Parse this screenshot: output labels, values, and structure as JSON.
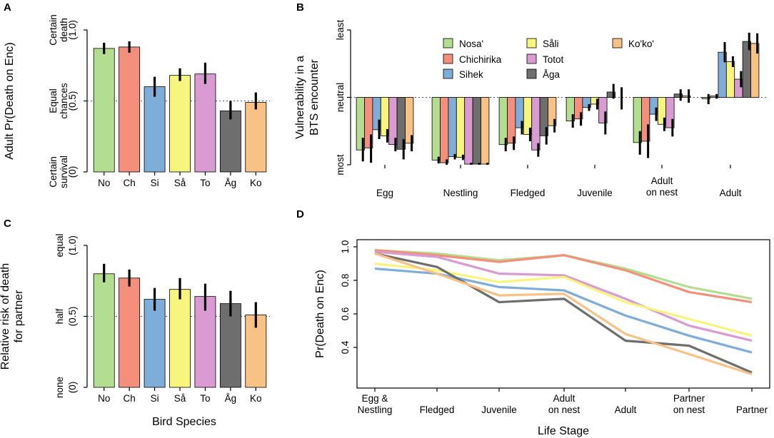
{
  "colors": {
    "Nosa'": "#b3de8f",
    "Chichirika": "#f48f7b",
    "Sihek": "#7fadd9",
    "Sali": "#f7f57e",
    "Totot": "#d99bd1",
    "Aga": "#6e6e6e",
    "Kokoo": "#f8c185"
  },
  "species_abbrev": [
    "No",
    "Ch",
    "Si",
    "Så",
    "To",
    "Åg",
    "Ko"
  ],
  "chart_data": [
    {
      "panel": "A",
      "type": "bar",
      "title": "",
      "xlabel": "",
      "ylabel": "Adult Pr(Death on Enc)",
      "ylim": [
        0,
        1
      ],
      "categories": [
        "No",
        "Ch",
        "Si",
        "Så",
        "To",
        "Åg",
        "Ko"
      ],
      "values": [
        0.87,
        0.88,
        0.6,
        0.68,
        0.69,
        0.43,
        0.49
      ],
      "err_low": [
        0.83,
        0.84,
        0.53,
        0.64,
        0.62,
        0.37,
        0.44
      ],
      "err_high": [
        0.91,
        0.92,
        0.67,
        0.73,
        0.77,
        0.5,
        0.56
      ],
      "reference_line": 0.5,
      "ytick_labels": [
        {
          "value": 1.0,
          "label": "Certain death",
          "num": "(1.0)"
        },
        {
          "value": 0.5,
          "label": "Equal chances",
          "num": "(0.5)"
        },
        {
          "value": 0.0,
          "label": "Certain survival",
          "num": "(0)"
        }
      ]
    },
    {
      "panel": "B",
      "type": "bar",
      "xlabel": "",
      "ylabel": "Vulnerability in a BTS encounter",
      "ylim": [
        -1,
        1
      ],
      "ytick_labels": [
        {
          "value": 1,
          "label": "least"
        },
        {
          "value": 0,
          "label": "neutral"
        },
        {
          "value": -1,
          "label": "most"
        }
      ],
      "categories": [
        "Egg",
        "Nestling",
        "Fledged",
        "Juvenile",
        "Adult on nest",
        "Adult"
      ],
      "legend": [
        "Nosa'",
        "Chichirika",
        "Sihek",
        "Sali",
        "Totot",
        "Aga",
        "Kokoo"
      ],
      "legend_labels": [
        "Nosa'",
        "Chichirika",
        "Sihek",
        "Såli",
        "Totot",
        "Åga",
        "Ko'ko'"
      ],
      "reference_line": 0,
      "series": [
        {
          "name": "Nosa'",
          "values": [
            -0.78,
            -0.93,
            -0.7,
            -0.35,
            -0.67,
            -0.02
          ],
          "err_low": [
            -0.95,
            -0.98,
            -0.8,
            -0.45,
            -0.85,
            -0.1
          ],
          "err_high": [
            -0.6,
            -0.88,
            -0.6,
            -0.25,
            -0.5,
            0.05
          ]
        },
        {
          "name": "Chichirika",
          "values": [
            -0.75,
            -0.97,
            -0.68,
            -0.32,
            -0.65,
            0.02
          ],
          "err_low": [
            -0.97,
            -1.0,
            -0.78,
            -0.42,
            -0.9,
            -0.02
          ],
          "err_high": [
            -0.55,
            -0.92,
            -0.58,
            -0.22,
            -0.4,
            0.05
          ]
        },
        {
          "name": "Sihek",
          "values": [
            -0.48,
            -0.88,
            -0.45,
            -0.15,
            -0.25,
            0.67
          ],
          "err_low": [
            -0.62,
            -0.92,
            -0.55,
            -0.2,
            -0.35,
            0.52
          ],
          "err_high": [
            -0.33,
            -0.84,
            -0.35,
            -0.1,
            -0.15,
            0.82
          ]
        },
        {
          "name": "Sali",
          "values": [
            -0.57,
            -0.89,
            -0.55,
            -0.1,
            -0.4,
            0.53
          ],
          "err_low": [
            -0.67,
            -0.93,
            -0.65,
            -0.18,
            -0.5,
            0.45
          ],
          "err_high": [
            -0.47,
            -0.85,
            -0.45,
            -0.02,
            -0.3,
            0.61
          ]
        },
        {
          "name": "Totot",
          "values": [
            -0.7,
            -0.99,
            -0.78,
            -0.38,
            -0.45,
            0.27
          ],
          "err_low": [
            -0.8,
            -1.0,
            -0.88,
            -0.55,
            -0.58,
            0.15
          ],
          "err_high": [
            -0.6,
            -0.97,
            -0.68,
            -0.21,
            -0.32,
            0.39
          ]
        },
        {
          "name": "Aga",
          "values": [
            -0.77,
            -0.99,
            -0.57,
            0.08,
            0.05,
            0.83
          ],
          "err_low": [
            -0.92,
            -1.0,
            -0.7,
            -0.02,
            -0.05,
            0.7
          ],
          "err_high": [
            -0.62,
            -0.97,
            -0.44,
            0.2,
            0.12,
            0.96
          ]
        },
        {
          "name": "Kokoo",
          "values": [
            -0.68,
            -0.99,
            -0.42,
            0.0,
            0.02,
            0.8
          ],
          "err_low": [
            -0.8,
            -1.0,
            -0.52,
            -0.18,
            -0.08,
            0.65
          ],
          "err_high": [
            -0.56,
            -0.97,
            -0.32,
            0.15,
            0.12,
            0.95
          ]
        }
      ]
    },
    {
      "panel": "C",
      "type": "bar",
      "xlabel": "Bird Species",
      "ylabel": "Relative risk of death for partner",
      "ylim": [
        0,
        1
      ],
      "categories": [
        "No",
        "Ch",
        "Si",
        "Så",
        "To",
        "Åg",
        "Ko"
      ],
      "values": [
        0.8,
        0.77,
        0.62,
        0.69,
        0.64,
        0.59,
        0.51
      ],
      "err_low": [
        0.74,
        0.71,
        0.54,
        0.62,
        0.54,
        0.5,
        0.42
      ],
      "err_high": [
        0.87,
        0.83,
        0.7,
        0.77,
        0.73,
        0.68,
        0.6
      ],
      "reference_line": 0.5,
      "ytick_labels": [
        {
          "value": 1.0,
          "label": "equal",
          "num": "(1.0)"
        },
        {
          "value": 0.5,
          "label": "half",
          "num": "(0.5)"
        },
        {
          "value": 0.0,
          "label": "none",
          "num": "(0)"
        }
      ]
    },
    {
      "panel": "D",
      "type": "line",
      "xlabel": "Life Stage",
      "ylabel": "Pr(Death on Enc)",
      "ylim": [
        0.2,
        1.0
      ],
      "yticks": [
        0.4,
        0.6,
        0.8,
        1.0
      ],
      "ytick_text": [
        "0.4",
        "0.6",
        "0.8",
        "1.0"
      ],
      "categories": [
        "Egg & Nestling",
        "Fledged",
        "Juvenile",
        "Adult on nest",
        "Adult",
        "Partner on nest",
        "Partner"
      ],
      "category_lines": [
        [
          "Egg &",
          "Nestling"
        ],
        [
          "Fledged"
        ],
        [
          "Juvenile"
        ],
        [
          "Adult",
          "on nest"
        ],
        [
          "Adult"
        ],
        [
          "Partner",
          "on nest"
        ],
        [
          "Partner"
        ]
      ],
      "series": [
        {
          "name": "Nosa'",
          "values": [
            0.98,
            0.96,
            0.92,
            0.95,
            0.87,
            0.76,
            0.69
          ]
        },
        {
          "name": "Chichirika",
          "values": [
            0.98,
            0.95,
            0.91,
            0.95,
            0.86,
            0.73,
            0.67
          ]
        },
        {
          "name": "Totot",
          "values": [
            0.97,
            0.94,
            0.84,
            0.83,
            0.69,
            0.53,
            0.44
          ]
        },
        {
          "name": "Sali",
          "values": [
            0.9,
            0.86,
            0.79,
            0.82,
            0.67,
            0.57,
            0.47
          ]
        },
        {
          "name": "Sihek",
          "values": [
            0.87,
            0.84,
            0.76,
            0.74,
            0.59,
            0.47,
            0.37
          ]
        },
        {
          "name": "Aga",
          "values": [
            0.96,
            0.88,
            0.67,
            0.69,
            0.44,
            0.41,
            0.25
          ]
        },
        {
          "name": "Kokoo",
          "values": [
            0.96,
            0.84,
            0.71,
            0.72,
            0.48,
            0.36,
            0.24
          ]
        }
      ]
    }
  ]
}
